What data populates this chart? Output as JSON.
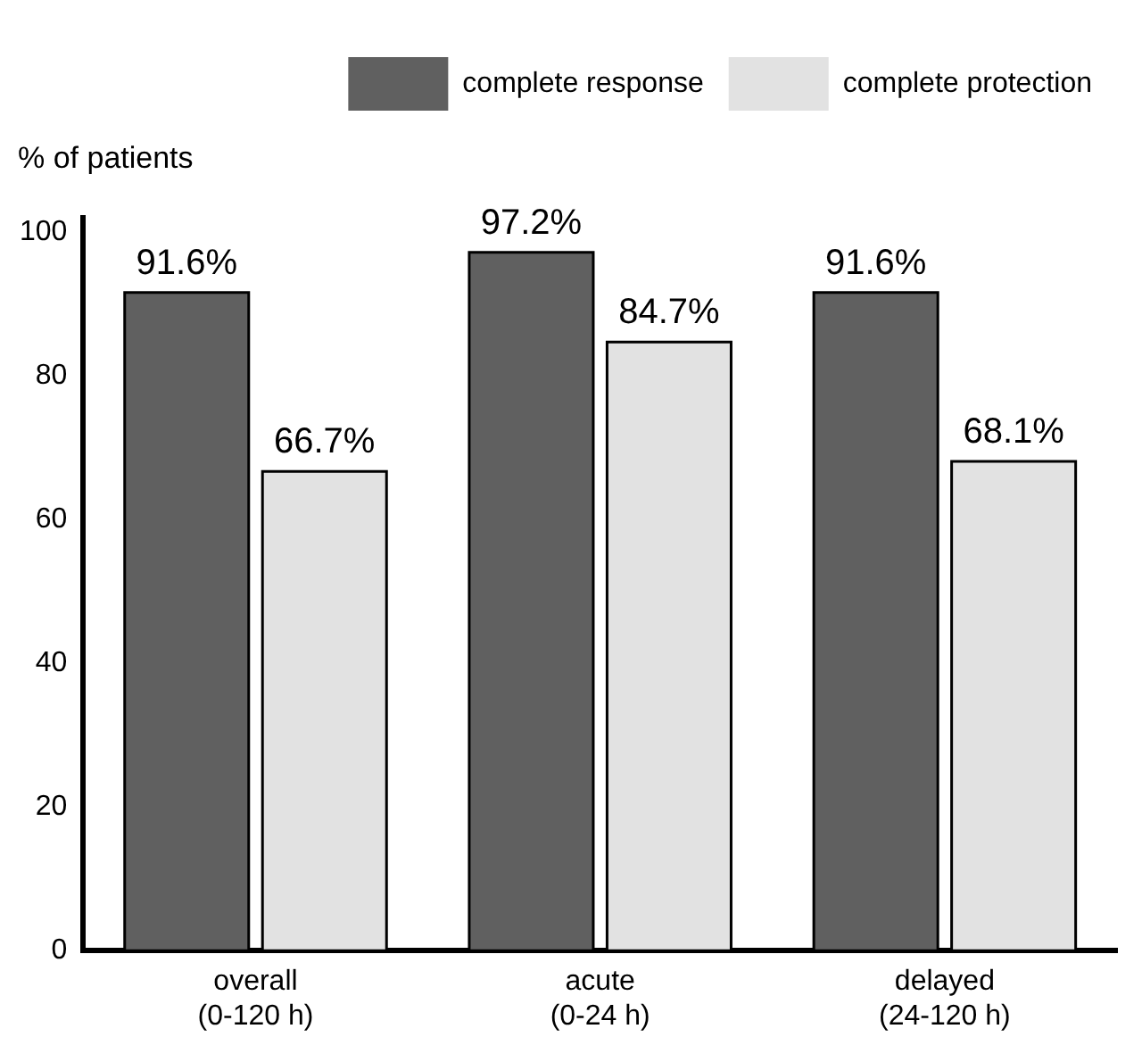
{
  "chart_data": {
    "type": "bar",
    "ylabel": "% of patients",
    "categories": [
      "overall\n(0-120 h)",
      "acute\n(0-24 h)",
      "delayed\n(24-120 h)"
    ],
    "series": [
      {
        "name": "complete response",
        "color": "#606060",
        "values": [
          91.6,
          97.2,
          91.6
        ],
        "value_labels": [
          "91.6%",
          "97.2%",
          "91.6%"
        ]
      },
      {
        "name": "complete protection",
        "color": "#e2e2e2",
        "values": [
          66.7,
          84.7,
          68.1
        ],
        "value_labels": [
          "66.7%",
          "84.7%",
          "68.1%"
        ]
      }
    ],
    "ylim": [
      0,
      102
    ],
    "yticks": [
      0,
      20,
      40,
      60,
      80,
      100
    ],
    "grid": false,
    "legend": "top right"
  }
}
